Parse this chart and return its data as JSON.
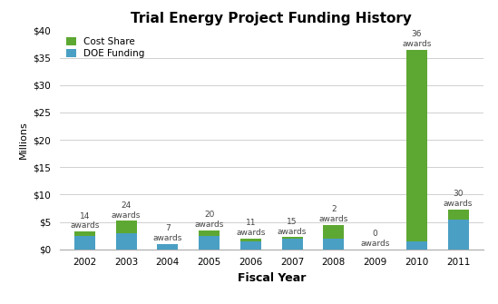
{
  "years": [
    "2002",
    "2003",
    "2004",
    "2005",
    "2006",
    "2007",
    "2008",
    "2009",
    "2010",
    "2011"
  ],
  "doe_funding": [
    2.5,
    3.0,
    1.0,
    2.5,
    1.5,
    2.0,
    2.0,
    0.0,
    1.5,
    5.5
  ],
  "cost_share": [
    0.8,
    2.2,
    0.0,
    1.0,
    0.5,
    0.2,
    2.5,
    0.0,
    35.0,
    1.8
  ],
  "awards": [
    14,
    24,
    7,
    20,
    11,
    15,
    2,
    0,
    36,
    30
  ],
  "doe_color": "#4a9fc4",
  "cost_share_color": "#5da832",
  "title": "Trial Energy Project Funding History",
  "xlabel": "Fiscal Year",
  "ylabel": "Millions",
  "ylim": [
    0,
    40
  ],
  "yticks": [
    0,
    5,
    10,
    15,
    20,
    25,
    30,
    35,
    40
  ],
  "ytick_labels": [
    "$0",
    "$5",
    "$10",
    "$15",
    "$20",
    "$25",
    "$30",
    "$35",
    "$40"
  ],
  "legend_cost_share": "Cost Share",
  "legend_doe": "DOE Funding",
  "bar_width": 0.5,
  "background_color": "#ffffff",
  "grid_color": "#d0d0d0"
}
